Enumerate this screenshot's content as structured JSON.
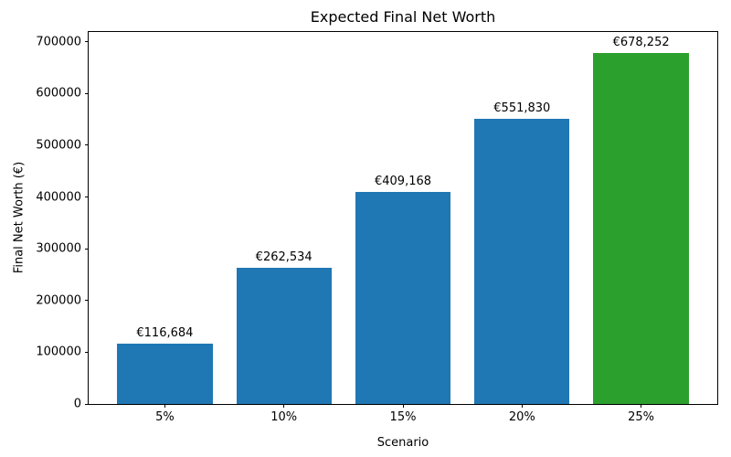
{
  "chart_data": {
    "type": "bar",
    "title": "Expected Final Net Worth",
    "xlabel": "Scenario",
    "ylabel": "Final Net Worth (€)",
    "categories": [
      "5%",
      "10%",
      "15%",
      "20%",
      "25%"
    ],
    "values": [
      116684,
      262534,
      409168,
      551830,
      678252
    ],
    "bar_labels": [
      "€116,684",
      "€262,534",
      "€409,168",
      "€551,830",
      "€678,252"
    ],
    "bar_colors": [
      "#1f77b4",
      "#1f77b4",
      "#1f77b4",
      "#1f77b4",
      "#2ca02c"
    ],
    "yticks": [
      0,
      100000,
      200000,
      300000,
      400000,
      500000,
      600000,
      700000
    ],
    "ytick_labels": [
      "0",
      "100000",
      "200000",
      "300000",
      "400000",
      "500000",
      "600000",
      "700000"
    ],
    "ylim": [
      0,
      719000
    ],
    "grid": false,
    "legend": null,
    "axis_color": "#000000",
    "background_color": "#ffffff"
  }
}
